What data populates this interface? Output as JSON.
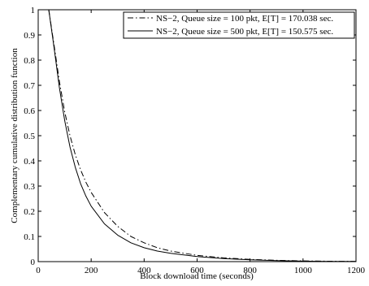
{
  "chart_data": {
    "type": "line",
    "title": "",
    "xlabel": "Block download time (seconds)",
    "ylabel": "Complementary cumulative distribution function",
    "xlim": [
      0,
      1200
    ],
    "ylim": [
      0,
      1
    ],
    "xticks": [
      0,
      200,
      400,
      600,
      800,
      1000,
      1200
    ],
    "yticks": [
      0,
      0.1,
      0.2,
      0.3,
      0.4,
      0.5,
      0.6,
      0.7,
      0.8,
      0.9,
      1
    ],
    "xtick_labels": [
      "0",
      "200",
      "400",
      "600",
      "800",
      "1000",
      "1200"
    ],
    "ytick_labels": [
      "0",
      "0.1",
      "0.2",
      "0.3",
      "0.4",
      "0.5",
      "0.6",
      "0.7",
      "0.8",
      "0.9",
      "1"
    ],
    "grid": false,
    "legend_position": "top-right",
    "series": [
      {
        "name": "NS−2, Queue size = 100 pkt, E[T] = 170.038 sec.",
        "line_style": "dash-dot",
        "color": "#000000",
        "x": [
          40,
          60,
          80,
          100,
          120,
          140,
          160,
          180,
          200,
          250,
          300,
          350,
          400,
          450,
          500,
          600,
          700,
          800,
          900,
          1000,
          1100,
          1200
        ],
        "y": [
          1.0,
          0.86,
          0.715,
          0.595,
          0.5,
          0.425,
          0.365,
          0.315,
          0.275,
          0.195,
          0.14,
          0.1,
          0.075,
          0.055,
          0.042,
          0.025,
          0.015,
          0.009,
          0.005,
          0.003,
          0.0015,
          0.001
        ]
      },
      {
        "name": "NS−2, Queue size = 500 pkt, E[T] = 150.575 sec.",
        "line_style": "solid",
        "color": "#000000",
        "x": [
          40,
          60,
          80,
          100,
          120,
          140,
          160,
          180,
          200,
          250,
          300,
          350,
          400,
          450,
          500,
          600,
          700,
          800,
          900,
          1000,
          1100,
          1200
        ],
        "y": [
          1.0,
          0.85,
          0.69,
          0.56,
          0.455,
          0.375,
          0.31,
          0.26,
          0.22,
          0.15,
          0.105,
          0.075,
          0.055,
          0.042,
          0.033,
          0.02,
          0.012,
          0.007,
          0.004,
          0.002,
          0.001,
          0.0005
        ]
      }
    ]
  }
}
